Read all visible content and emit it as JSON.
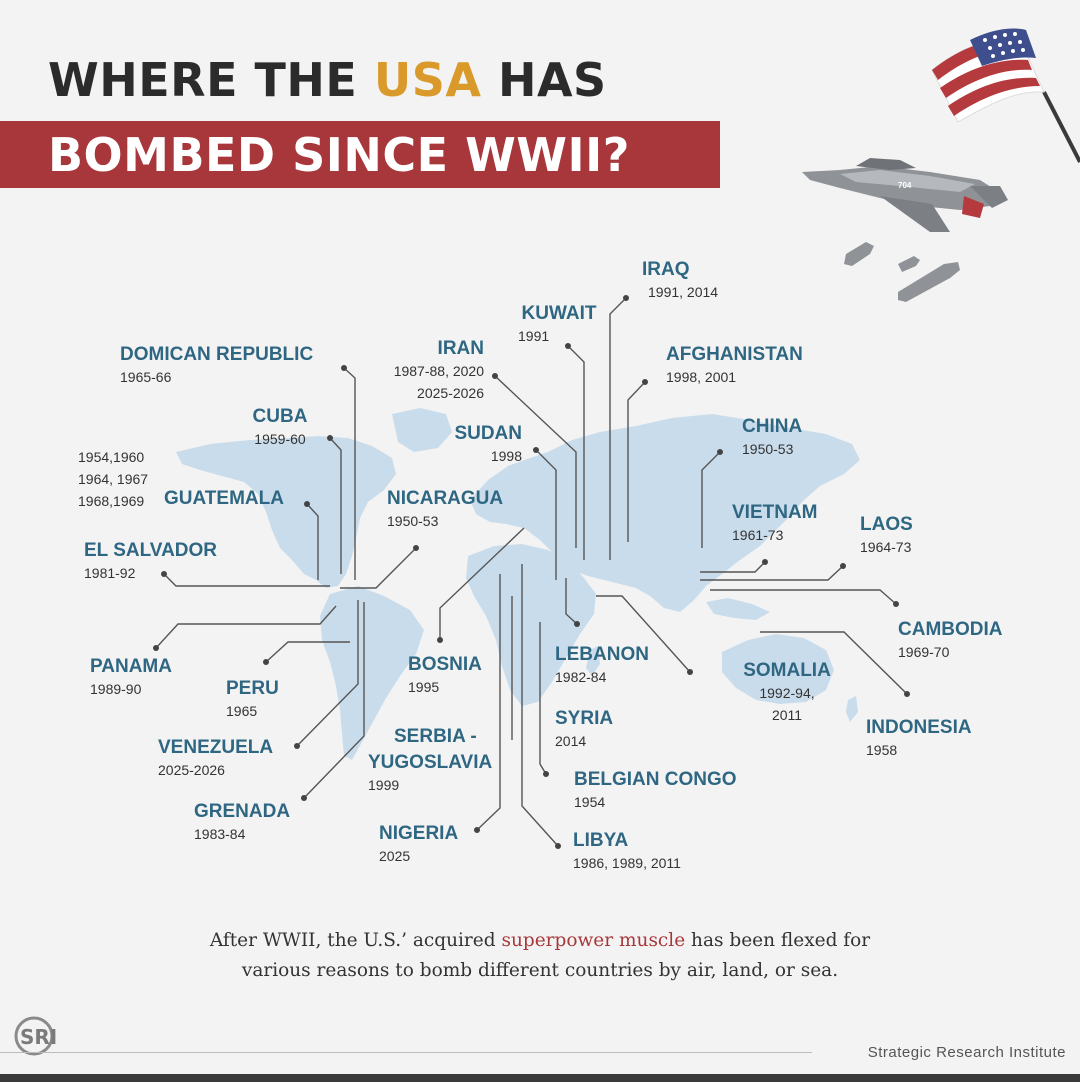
{
  "title": {
    "line1_before": "WHERE THE ",
    "line1_accent": "USA",
    "line1_after": " HAS",
    "line2": "BOMBED SINCE WWII?"
  },
  "colors": {
    "accent_gold": "#d99a2b",
    "band_red": "#a8373b",
    "label_blue": "#2f6783",
    "map_fill": "#c9dcec"
  },
  "countries": {
    "iraq": {
      "name": "IRAQ",
      "years": "1991,  2014"
    },
    "kuwait": {
      "name": "KUWAIT",
      "years": "1991"
    },
    "afghanistan": {
      "name": "AFGHANISTAN",
      "years": "1998, 2001"
    },
    "dominican_republic": {
      "name": "DOMICAN REPUBLIC",
      "years": "1965-66"
    },
    "iran": {
      "name": "IRAN",
      "years1": "1987-88, 2020",
      "years2": "2025-2026"
    },
    "cuba": {
      "name": "CUBA",
      "years": "1959-60"
    },
    "sudan": {
      "name": "SUDAN",
      "years": "1998"
    },
    "china": {
      "name": "CHINA",
      "years": "1950-53"
    },
    "guatemala": {
      "name": "GUATEMALA",
      "years1": "1954,1960",
      "years2": "1964, 1967",
      "years3": "1968,1969"
    },
    "nicaragua": {
      "name": "NICARAGUA",
      "years": "1950-53"
    },
    "vietnam": {
      "name": "VIETNAM",
      "years": "1961-73"
    },
    "laos": {
      "name": "LAOS",
      "years": "1964-73"
    },
    "el_salvador": {
      "name": "EL SALVADOR",
      "years": "1981-92"
    },
    "cambodia": {
      "name": "CAMBODIA",
      "years": "1969-70"
    },
    "panama": {
      "name": "PANAMA",
      "years": "1989-90"
    },
    "peru": {
      "name": "PERU",
      "years": "1965"
    },
    "bosnia": {
      "name": "BOSNIA",
      "years": "1995"
    },
    "lebanon": {
      "name": "LEBANON",
      "years": "1982-84"
    },
    "somalia": {
      "name": "SOMALIA",
      "years1": "1992-94,",
      "years2": "2011"
    },
    "indonesia": {
      "name": "INDONESIA",
      "years": "1958"
    },
    "syria": {
      "name": "SYRIA",
      "years": "2014"
    },
    "venezuela": {
      "name": "VENEZUELA",
      "years": "2025-2026"
    },
    "serbia": {
      "name1": "SERBIA -",
      "name2": "YUGOSLAVIA",
      "years": "1999"
    },
    "belgian_congo": {
      "name": "BELGIAN CONGO",
      "years": "1954"
    },
    "grenada": {
      "name": "GRENADA",
      "years": "1983-84"
    },
    "nigeria": {
      "name": "NIGERIA",
      "years": "2025"
    },
    "libya": {
      "name": "LIBYA",
      "years": "1986, 1989, 2011"
    }
  },
  "caption": {
    "line1_before": "After WWII, the U.S.’ acquired ",
    "line1_highlight": "superpower muscle",
    "line1_after": " has been flexed for",
    "line2": "various reasons to bomb different countries by air, land, or sea."
  },
  "footer": {
    "logo_text": "SRI",
    "organization": "Strategic Research Institute"
  },
  "plane_tail_text": "704"
}
